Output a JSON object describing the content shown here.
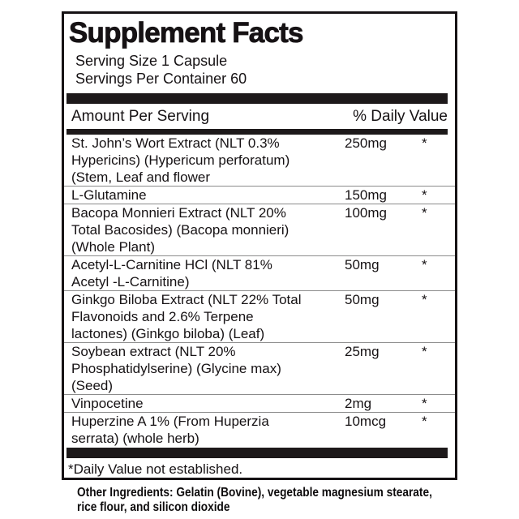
{
  "label": {
    "title": "Supplement Facts",
    "serving_size": "Serving Size 1 Capsule",
    "servings_per_container": "Servings Per Container 60",
    "column_headers": {
      "left": "Amount Per Serving",
      "right": "% Daily Value"
    },
    "rows": [
      {
        "name": "St. John’s Wort Extract (NLT 0.3% Hypericins) (Hypericum perforatum) (Stem, Leaf and flower",
        "amount": "250mg",
        "daily_value": "*"
      },
      {
        "name": "L-Glutamine",
        "amount": "150mg",
        "daily_value": "*"
      },
      {
        "name": "Bacopa Monnieri Extract (NLT 20% Total Bacosides) (Bacopa monnieri) (Whole Plant)",
        "amount": "100mg",
        "daily_value": "*"
      },
      {
        "name": "Acetyl-L-Carnitine HCl (NLT 81% Acetyl -L-Carnitine)",
        "amount": "50mg",
        "daily_value": "*"
      },
      {
        "name": "Ginkgo Biloba Extract (NLT 22% Total Flavonoids and 2.6% Terpene lactones) (Ginkgo biloba) (Leaf)",
        "amount": "50mg",
        "daily_value": "*"
      },
      {
        "name": "Soybean extract (NLT 20% Phosphatidylserine) (Glycine max) (Seed)",
        "amount": "25mg",
        "daily_value": "*"
      },
      {
        "name": "Vinpocetine",
        "amount": "2mg",
        "daily_value": "*"
      },
      {
        "name": "Huperzine A 1% (From Huperzia serrata) (whole herb)",
        "amount": "10mcg",
        "daily_value": "*"
      }
    ],
    "footnote": "*Daily Value not established.",
    "other_ingredients": "Other Ingredients: Gelatin (Bovine), vegetable magnesium stearate, rice flour, and silicon dioxide",
    "colors": {
      "text": "#161214",
      "bar": "#1d191a",
      "divider": "#8c8c8c",
      "border": "#161214",
      "background": "#ffffff"
    }
  }
}
